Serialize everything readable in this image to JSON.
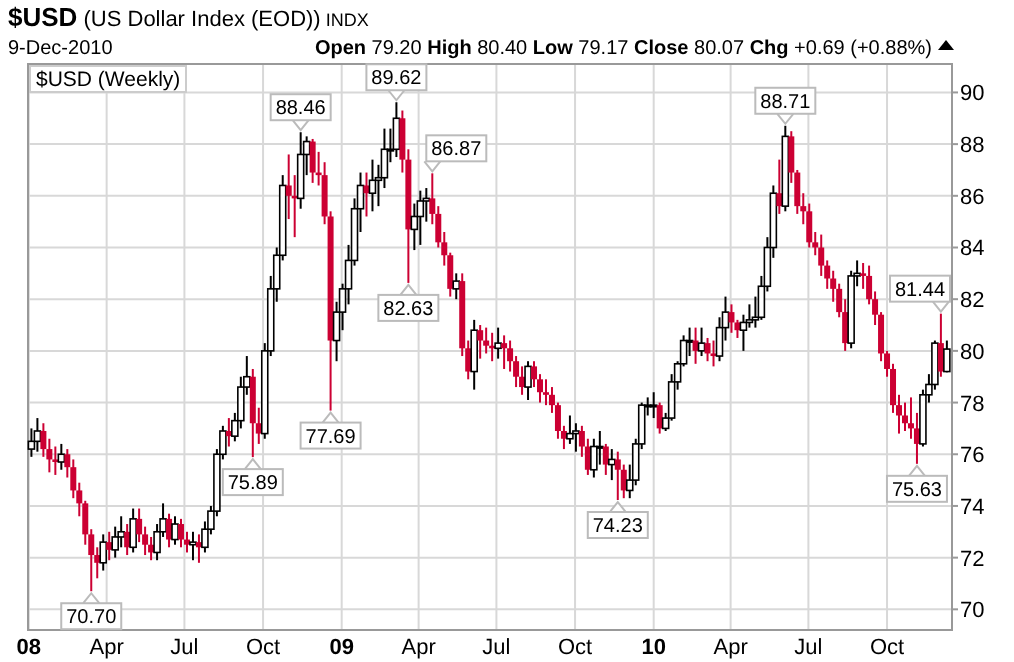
{
  "chart_data": {
    "type": "candlestick",
    "title": "$USD (US Dollar Index (EOD)) INDX",
    "subtitle": "9-Dec-2010",
    "annotations": [
      "Open 79.20 High 80.40 Low 79.17 Close 80.07 Chg +0.69 (+0.88%)",
      {
        "text": "70.70",
        "x": "2008-03-14",
        "y": 70.7
      },
      {
        "text": "75.89",
        "x": "2008-09-19",
        "y": 75.89
      },
      {
        "text": "88.46",
        "x": "2008-11-14",
        "y": 88.46
      },
      {
        "text": "77.69",
        "x": "2008-12-19",
        "y": 77.69
      },
      {
        "text": "89.62",
        "x": "2009-03-06",
        "y": 89.62
      },
      {
        "text": "82.63",
        "x": "2009-03-20",
        "y": 82.63
      },
      {
        "text": "86.87",
        "x": "2009-04-17",
        "y": 86.87
      },
      {
        "text": "74.23",
        "x": "2009-11-20",
        "y": 74.23
      },
      {
        "text": "88.71",
        "x": "2010-06-04",
        "y": 88.71
      },
      {
        "text": "75.63",
        "x": "2010-11-05",
        "y": 75.63
      },
      {
        "text": "81.44",
        "x": "2010-12-03",
        "y": 81.44
      }
    ],
    "series": [
      {
        "name": "$USD (Weekly)",
        "colors": [
          "#ffffff",
          "#ffffff",
          "#cc0033",
          "#cc0033",
          "#cc0033",
          "#ffffff",
          "#cc0033",
          "#cc0033",
          "#cc0033",
          "#cc0033",
          "#cc0033",
          "#cc0033",
          "#ffffff",
          "#cc0033",
          "#ffffff",
          "#ffffff",
          "#cc0033",
          "#ffffff",
          "#cc0033",
          "#cc0033",
          "#cc0033",
          "#ffffff",
          "#ffffff",
          "#cc0033",
          "#ffffff",
          "#cc0033",
          "#cc0033",
          "#ffffff",
          "#cc0033",
          "#ffffff",
          "#ffffff",
          "#ffffff",
          "#ffffff",
          "#cc0033",
          "#ffffff",
          "#ffffff",
          "#ffffff",
          "#cc0033",
          "#cc0033",
          "#ffffff",
          "#ffffff",
          "#ffffff",
          "#ffffff",
          "#cc0033",
          "#cc0033",
          "#ffffff",
          "#ffffff",
          "#cc0033",
          "#cc0033",
          "#cc0033",
          "#cc0033",
          "#ffffff",
          "#ffffff",
          "#ffffff",
          "#ffffff",
          "#ffffff",
          "#cc0033",
          "#ffffff",
          "#ffffff",
          "#ffffff",
          "#ffffff",
          "#ffffff",
          "#cc0033",
          "#cc0033",
          "#ffffff",
          "#ffffff",
          "#ffffff",
          "#cc0033",
          "#cc0033",
          "#cc0033",
          "#cc0033",
          "#ffffff",
          "#cc0033",
          "#cc0033",
          "#ffffff",
          "#cc0033",
          "#cc0033",
          "#cc0033",
          "#ffffff",
          "#cc0033",
          "#cc0033",
          "#cc0033",
          "#cc0033",
          "#ffffff",
          "#cc0033",
          "#cc0033",
          "#cc0033",
          "#cc0033",
          "#cc0033",
          "#cc0033",
          "#ffffff",
          "#ffffff",
          "#cc0033",
          "#cc0033",
          "#ffffff",
          "#ffffff",
          "#cc0033",
          "#ffffff",
          "#cc0033",
          "#cc0033",
          "#ffffff",
          "#ffffff",
          "#ffffff",
          "#ffffff",
          "#ffffff",
          "#cc0033",
          "#ffffff",
          "#ffffff",
          "#ffffff",
          "#ffffff",
          "#ffffff",
          "#cc0033",
          "#ffffff",
          "#cc0033",
          "#cc0033",
          "#ffffff",
          "#ffffff",
          "#cc0033",
          "#cc0033",
          "#ffffff",
          "#ffffff",
          "#ffffff",
          "#ffffff",
          "#ffffff",
          "#ffffff",
          "#cc0033",
          "#ffffff",
          "#cc0033",
          "#cc0033",
          "#cc0033",
          "#cc0033",
          "#cc0033",
          "#cc0033",
          "#cc0033",
          "#cc0033",
          "#cc0033",
          "#cc0033",
          "#ffffff",
          "#ffffff",
          "#cc0033",
          "#cc0033",
          "#cc0033",
          "#cc0033",
          "#cc0033",
          "#cc0033",
          "#cc0033",
          "#cc0033",
          "#cc0033",
          "#cc0033",
          "#ffffff",
          "#ffffff",
          "#ffffff",
          "#cc0033",
          "#ffffff"
        ],
        "x": [
          "2008-01-04",
          "2008-01-11",
          "2008-01-18",
          "2008-01-25",
          "2008-02-01",
          "2008-02-08",
          "2008-02-15",
          "2008-02-22",
          "2008-02-29",
          "2008-03-07",
          "2008-03-14",
          "2008-03-21",
          "2008-03-28",
          "2008-04-04",
          "2008-04-11",
          "2008-04-18",
          "2008-04-25",
          "2008-05-02",
          "2008-05-09",
          "2008-05-16",
          "2008-05-23",
          "2008-05-30",
          "2008-06-06",
          "2008-06-13",
          "2008-06-20",
          "2008-06-27",
          "2008-07-04",
          "2008-07-11",
          "2008-07-18",
          "2008-07-25",
          "2008-08-01",
          "2008-08-08",
          "2008-08-15",
          "2008-08-22",
          "2008-08-29",
          "2008-09-05",
          "2008-09-12",
          "2008-09-19",
          "2008-09-26",
          "2008-10-03",
          "2008-10-10",
          "2008-10-17",
          "2008-10-24",
          "2008-10-31",
          "2008-11-07",
          "2008-11-14",
          "2008-11-21",
          "2008-11-28",
          "2008-12-05",
          "2008-12-12",
          "2008-12-19",
          "2008-12-26",
          "2009-01-02",
          "2009-01-09",
          "2009-01-16",
          "2009-01-23",
          "2009-01-30",
          "2009-02-06",
          "2009-02-13",
          "2009-02-20",
          "2009-02-27",
          "2009-03-06",
          "2009-03-13",
          "2009-03-20",
          "2009-03-27",
          "2009-04-03",
          "2009-04-10",
          "2009-04-17",
          "2009-04-24",
          "2009-05-01",
          "2009-05-08",
          "2009-05-15",
          "2009-05-22",
          "2009-05-29",
          "2009-06-05",
          "2009-06-12",
          "2009-06-19",
          "2009-06-26",
          "2009-07-03",
          "2009-07-10",
          "2009-07-17",
          "2009-07-24",
          "2009-07-31",
          "2009-08-07",
          "2009-08-14",
          "2009-08-21",
          "2009-08-28",
          "2009-09-04",
          "2009-09-11",
          "2009-09-18",
          "2009-09-25",
          "2009-10-02",
          "2009-10-09",
          "2009-10-16",
          "2009-10-23",
          "2009-10-30",
          "2009-11-06",
          "2009-11-13",
          "2009-11-20",
          "2009-11-27",
          "2009-12-04",
          "2009-12-11",
          "2009-12-18",
          "2009-12-25",
          "2010-01-01",
          "2010-01-08",
          "2010-01-15",
          "2010-01-22",
          "2010-01-29",
          "2010-02-05",
          "2010-02-12",
          "2010-02-19",
          "2010-02-26",
          "2010-03-05",
          "2010-03-12",
          "2010-03-19",
          "2010-03-26",
          "2010-04-02",
          "2010-04-09",
          "2010-04-16",
          "2010-04-23",
          "2010-04-30",
          "2010-05-07",
          "2010-05-14",
          "2010-05-21",
          "2010-05-28",
          "2010-06-04",
          "2010-06-11",
          "2010-06-18",
          "2010-06-25",
          "2010-07-02",
          "2010-07-09",
          "2010-07-16",
          "2010-07-23",
          "2010-07-30",
          "2010-08-06",
          "2010-08-13",
          "2010-08-20",
          "2010-08-27",
          "2010-09-03",
          "2010-09-10",
          "2010-09-17",
          "2010-09-24",
          "2010-10-01",
          "2010-10-08",
          "2010-10-15",
          "2010-10-22",
          "2010-10-29",
          "2010-11-05",
          "2010-11-12",
          "2010-11-19",
          "2010-11-26",
          "2010-12-03",
          "2010-12-10"
        ],
        "ohlc": [
          [
            76.2,
            77.0,
            75.9,
            76.5
          ],
          [
            76.5,
            77.4,
            76.1,
            76.9
          ],
          [
            76.9,
            77.2,
            75.9,
            76.2
          ],
          [
            76.2,
            76.6,
            75.3,
            75.8
          ],
          [
            75.8,
            76.3,
            75.2,
            75.7
          ],
          [
            75.7,
            76.4,
            75.4,
            76.0
          ],
          [
            76.0,
            76.2,
            75.1,
            75.5
          ],
          [
            75.5,
            75.8,
            74.3,
            74.6
          ],
          [
            74.6,
            74.9,
            73.6,
            74.1
          ],
          [
            74.1,
            74.2,
            72.5,
            72.9
          ],
          [
            72.9,
            73.1,
            70.7,
            72.1
          ],
          [
            72.1,
            72.4,
            71.2,
            71.8
          ],
          [
            71.8,
            72.9,
            71.5,
            72.6
          ],
          [
            72.6,
            73.0,
            71.9,
            72.3
          ],
          [
            72.3,
            73.2,
            72.0,
            72.8
          ],
          [
            72.8,
            73.6,
            72.4,
            73.0
          ],
          [
            73.0,
            73.3,
            72.1,
            72.4
          ],
          [
            72.4,
            73.9,
            72.2,
            73.5
          ],
          [
            73.5,
            73.9,
            72.6,
            72.9
          ],
          [
            72.9,
            73.2,
            72.1,
            72.5
          ],
          [
            72.5,
            72.8,
            71.9,
            72.2
          ],
          [
            72.2,
            73.3,
            71.9,
            73.0
          ],
          [
            73.0,
            74.1,
            72.8,
            73.5
          ],
          [
            73.5,
            73.7,
            72.4,
            72.7
          ],
          [
            72.7,
            73.6,
            72.5,
            73.3
          ],
          [
            73.3,
            73.5,
            72.4,
            72.7
          ],
          [
            72.7,
            73.0,
            72.2,
            72.5
          ],
          [
            72.5,
            73.0,
            71.9,
            72.6
          ],
          [
            72.6,
            72.9,
            71.8,
            72.4
          ],
          [
            72.4,
            73.4,
            72.2,
            73.1
          ],
          [
            73.1,
            74.0,
            72.9,
            73.8
          ],
          [
            73.8,
            76.2,
            73.6,
            76.0
          ],
          [
            76.0,
            77.1,
            75.8,
            76.9
          ],
          [
            76.9,
            77.4,
            76.3,
            76.7
          ],
          [
            76.7,
            77.6,
            76.5,
            77.3
          ],
          [
            77.3,
            79.0,
            77.0,
            78.6
          ],
          [
            78.6,
            79.8,
            78.3,
            79.0
          ],
          [
            79.0,
            79.3,
            75.89,
            77.2
          ],
          [
            77.2,
            77.8,
            76.4,
            76.8
          ],
          [
            76.8,
            80.3,
            76.6,
            80.0
          ],
          [
            80.0,
            82.9,
            79.8,
            82.4
          ],
          [
            82.4,
            84.0,
            81.9,
            83.7
          ],
          [
            83.7,
            86.8,
            83.5,
            86.4
          ],
          [
            86.4,
            87.6,
            85.1,
            86.0
          ],
          [
            86.0,
            86.8,
            84.4,
            85.9
          ],
          [
            85.9,
            88.46,
            85.5,
            87.6
          ],
          [
            87.6,
            88.3,
            86.8,
            88.1
          ],
          [
            88.1,
            88.2,
            86.5,
            86.9
          ],
          [
            86.9,
            87.7,
            86.4,
            86.8
          ],
          [
            86.8,
            87.3,
            84.9,
            85.2
          ],
          [
            85.2,
            85.4,
            77.69,
            80.4
          ],
          [
            80.4,
            81.9,
            79.6,
            81.5
          ],
          [
            81.5,
            82.6,
            80.8,
            82.4
          ],
          [
            82.4,
            84.1,
            81.8,
            83.5
          ],
          [
            83.5,
            85.9,
            83.3,
            85.5
          ],
          [
            85.5,
            86.9,
            84.6,
            86.4
          ],
          [
            86.4,
            86.9,
            85.2,
            86.1
          ],
          [
            86.1,
            87.4,
            85.4,
            86.6
          ],
          [
            86.6,
            87.2,
            85.6,
            86.7
          ],
          [
            86.7,
            88.6,
            86.3,
            87.8
          ],
          [
            87.8,
            88.6,
            87.3,
            87.8
          ],
          [
            87.8,
            89.62,
            87.5,
            89.0
          ],
          [
            89.0,
            89.3,
            86.9,
            87.4
          ],
          [
            87.4,
            87.8,
            82.63,
            84.7
          ],
          [
            84.7,
            85.7,
            83.9,
            85.2
          ],
          [
            85.2,
            86.2,
            84.1,
            85.8
          ],
          [
            85.8,
            86.3,
            85.0,
            85.9
          ],
          [
            85.9,
            86.87,
            84.9,
            85.3
          ],
          [
            85.3,
            85.6,
            84.0,
            84.2
          ],
          [
            84.2,
            84.6,
            83.3,
            83.7
          ],
          [
            83.7,
            83.8,
            82.1,
            82.4
          ],
          [
            82.4,
            83.0,
            82.0,
            82.7
          ],
          [
            82.7,
            83.0,
            79.8,
            80.1
          ],
          [
            80.1,
            80.4,
            78.9,
            79.2
          ],
          [
            79.2,
            81.2,
            78.5,
            80.8
          ],
          [
            80.8,
            81.0,
            79.7,
            80.4
          ],
          [
            80.4,
            80.9,
            79.9,
            80.2
          ],
          [
            80.2,
            80.7,
            79.6,
            80.1
          ],
          [
            80.1,
            80.9,
            79.7,
            80.3
          ],
          [
            80.3,
            80.6,
            79.3,
            80.1
          ],
          [
            80.1,
            80.4,
            79.2,
            79.6
          ],
          [
            79.6,
            79.8,
            78.6,
            79.0
          ],
          [
            79.0,
            79.4,
            78.3,
            78.6
          ],
          [
            78.6,
            79.6,
            78.1,
            79.4
          ],
          [
            79.4,
            79.6,
            78.6,
            78.9
          ],
          [
            78.9,
            79.1,
            78.0,
            78.4
          ],
          [
            78.4,
            78.9,
            77.9,
            78.3
          ],
          [
            78.3,
            78.6,
            77.6,
            77.9
          ],
          [
            77.9,
            78.0,
            76.6,
            76.9
          ],
          [
            76.9,
            77.1,
            76.2,
            76.6
          ],
          [
            76.6,
            77.5,
            76.4,
            76.8
          ],
          [
            76.8,
            77.2,
            76.1,
            76.9
          ],
          [
            76.9,
            77.1,
            75.9,
            76.3
          ],
          [
            76.3,
            76.6,
            75.2,
            75.4
          ],
          [
            75.4,
            76.6,
            75.1,
            76.3
          ],
          [
            76.3,
            76.9,
            75.6,
            76.3
          ],
          [
            76.3,
            76.4,
            75.2,
            75.6
          ],
          [
            75.6,
            76.2,
            75.0,
            75.8
          ],
          [
            75.8,
            76.1,
            74.23,
            75.4
          ],
          [
            75.4,
            75.6,
            74.3,
            74.6
          ],
          [
            74.6,
            75.6,
            74.3,
            75.0
          ],
          [
            75.0,
            76.6,
            74.8,
            76.4
          ],
          [
            76.4,
            78.0,
            76.2,
            77.9
          ],
          [
            77.9,
            78.2,
            77.5,
            77.9
          ],
          [
            77.9,
            78.4,
            77.4,
            77.9
          ],
          [
            77.9,
            78.0,
            76.8,
            77.0
          ],
          [
            77.0,
            77.6,
            76.9,
            77.4
          ],
          [
            77.4,
            79.1,
            77.3,
            78.8
          ],
          [
            78.8,
            79.6,
            78.5,
            79.5
          ],
          [
            79.5,
            80.6,
            79.4,
            80.4
          ],
          [
            80.4,
            80.9,
            79.8,
            80.4
          ],
          [
            80.4,
            80.9,
            79.5,
            80.0
          ],
          [
            80.0,
            80.9,
            79.8,
            80.3
          ],
          [
            80.3,
            80.5,
            79.6,
            79.9
          ],
          [
            79.9,
            80.4,
            79.4,
            79.8
          ],
          [
            79.8,
            81.3,
            79.6,
            80.9
          ],
          [
            80.9,
            82.1,
            80.4,
            81.5
          ],
          [
            81.5,
            81.8,
            80.7,
            81.1
          ],
          [
            81.1,
            81.2,
            80.5,
            80.8
          ],
          [
            80.8,
            81.4,
            80.0,
            81.1
          ],
          [
            81.1,
            81.8,
            80.9,
            81.2
          ],
          [
            81.2,
            82.1,
            80.9,
            81.3
          ],
          [
            81.3,
            82.9,
            81.2,
            82.5
          ],
          [
            82.5,
            84.4,
            82.3,
            84.0
          ],
          [
            84.0,
            86.4,
            83.6,
            86.1
          ],
          [
            86.1,
            87.4,
            85.3,
            85.6
          ],
          [
            85.6,
            88.71,
            85.4,
            88.3
          ],
          [
            88.3,
            88.5,
            86.5,
            86.9
          ],
          [
            86.9,
            87.0,
            85.3,
            85.6
          ],
          [
            85.6,
            86.1,
            84.9,
            85.4
          ],
          [
            85.4,
            85.7,
            84.0,
            84.2
          ],
          [
            84.2,
            84.6,
            83.7,
            84.0
          ],
          [
            84.0,
            84.5,
            82.9,
            83.3
          ],
          [
            83.3,
            83.5,
            82.4,
            82.8
          ],
          [
            82.8,
            83.1,
            81.9,
            82.4
          ],
          [
            82.4,
            82.6,
            81.3,
            81.5
          ],
          [
            81.5,
            82.0,
            80.0,
            80.3
          ],
          [
            80.3,
            83.1,
            80.1,
            82.9
          ],
          [
            82.9,
            83.5,
            82.5,
            83.0
          ],
          [
            83.0,
            83.4,
            82.4,
            82.9
          ],
          [
            82.9,
            83.3,
            81.8,
            82.0
          ],
          [
            82.0,
            82.3,
            81.0,
            81.4
          ],
          [
            81.4,
            81.5,
            79.6,
            79.9
          ],
          [
            79.9,
            80.0,
            79.0,
            79.3
          ],
          [
            79.3,
            79.5,
            77.6,
            77.9
          ],
          [
            77.9,
            78.3,
            76.8,
            77.5
          ],
          [
            77.5,
            78.0,
            76.9,
            77.2
          ],
          [
            77.2,
            78.2,
            76.6,
            77.0
          ],
          [
            77.0,
            77.6,
            75.63,
            76.4
          ],
          [
            76.4,
            78.5,
            76.3,
            78.3
          ],
          [
            78.3,
            79.1,
            78.0,
            78.7
          ],
          [
            78.7,
            80.4,
            78.5,
            80.3
          ],
          [
            80.3,
            81.44,
            79.0,
            79.2
          ],
          [
            79.2,
            80.4,
            79.17,
            80.07
          ]
        ]
      }
    ],
    "xlim": [
      "2007-12-31",
      "2010-12-16"
    ],
    "xticks": [
      {
        "value": "2008-01-01",
        "label": "08"
      },
      {
        "value": "2008-04-01",
        "label": "Apr"
      },
      {
        "value": "2008-07-01",
        "label": "Jul"
      },
      {
        "value": "2008-10-01",
        "label": "Oct"
      },
      {
        "value": "2009-01-01",
        "label": "09"
      },
      {
        "value": "2009-04-01",
        "label": "Apr"
      },
      {
        "value": "2009-07-01",
        "label": "Jul"
      },
      {
        "value": "2009-10-01",
        "label": "Oct"
      },
      {
        "value": "2010-01-01",
        "label": "10"
      },
      {
        "value": "2010-04-01",
        "label": "Apr"
      },
      {
        "value": "2010-07-01",
        "label": "Jul"
      },
      {
        "value": "2010-10-01",
        "label": "Oct"
      }
    ],
    "ylim": [
      69.2,
      91.1
    ],
    "yticks": [
      70,
      72,
      74,
      76,
      78,
      80,
      82,
      84,
      86,
      88,
      90
    ],
    "grid": true
  }
}
